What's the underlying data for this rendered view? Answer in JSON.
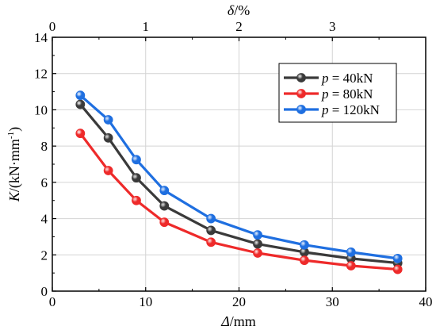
{
  "chart_data": {
    "type": "line",
    "x": [
      3,
      6,
      9,
      12,
      17,
      22,
      27,
      32,
      37
    ],
    "series": [
      {
        "name_italic": "p",
        "name_rest": " = 40kN",
        "color": "#3a3a3a",
        "values": [
          10.3,
          8.45,
          6.25,
          4.7,
          3.35,
          2.6,
          2.15,
          1.8,
          1.55
        ]
      },
      {
        "name_italic": "p",
        "name_rest": " = 80kN",
        "color": "#ee2a2a",
        "values": [
          8.7,
          6.65,
          5.0,
          3.8,
          2.7,
          2.1,
          1.7,
          1.4,
          1.2
        ]
      },
      {
        "name_italic": "p",
        "name_rest": " = 120kN",
        "color": "#1f6fe0",
        "values": [
          10.8,
          9.45,
          7.25,
          5.55,
          4.0,
          3.1,
          2.55,
          2.15,
          1.8
        ]
      }
    ],
    "xlim": [
      0,
      40
    ],
    "ylim": [
      0,
      14
    ],
    "xticks": [
      0,
      10,
      20,
      30,
      40
    ],
    "yticks": [
      0,
      2,
      4,
      6,
      8,
      10,
      12,
      14
    ],
    "top_xlim": [
      0,
      4
    ],
    "top_xticks": [
      0,
      1,
      2,
      3
    ],
    "xlabel_italic": "Δ",
    "xlabel_rest": "/mm",
    "ylabel_italic": "K",
    "ylabel_rest": "/(kN·mm",
    "ylabel_sup": "-1",
    "ylabel_end": ")",
    "top_label_italic": "δ",
    "top_label_rest": "/%",
    "grid": true,
    "legend_position": "upper-right"
  }
}
